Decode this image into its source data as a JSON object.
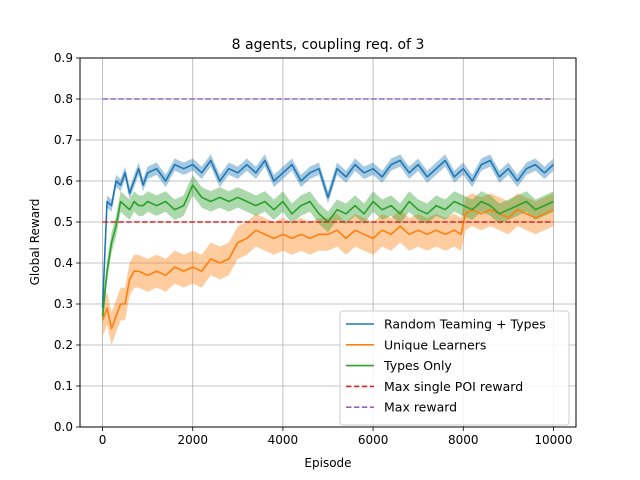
{
  "chart_data": {
    "type": "line",
    "title": "8 agents, coupling req. of 3",
    "xlabel": "Episode",
    "ylabel": "Global Reward",
    "xlim": [
      -500,
      10500
    ],
    "ylim": [
      0.0,
      0.9
    ],
    "xticks": [
      0,
      2000,
      4000,
      6000,
      8000,
      10000
    ],
    "yticks": [
      0.0,
      0.1,
      0.2,
      0.3,
      0.4,
      0.5,
      0.6,
      0.7,
      0.8,
      0.9
    ],
    "xtick_labels": [
      "0",
      "2000",
      "4000",
      "6000",
      "8000",
      "10000"
    ],
    "ytick_labels": [
      "0.0",
      "0.1",
      "0.2",
      "0.3",
      "0.4",
      "0.5",
      "0.6",
      "0.7",
      "0.8",
      "0.9"
    ],
    "grid": true,
    "legend_position": "lower-right",
    "series": [
      {
        "name": "Random Teaming + Types",
        "color": "#1f77b4",
        "style": "solid",
        "band": true,
        "x": [
          0,
          100,
          200,
          300,
          400,
          500,
          600,
          700,
          800,
          900,
          1000,
          1200,
          1400,
          1600,
          1800,
          2000,
          2200,
          2400,
          2600,
          2800,
          3000,
          3200,
          3400,
          3600,
          3800,
          4000,
          4200,
          4400,
          4600,
          4800,
          5000,
          5200,
          5400,
          5600,
          5800,
          6000,
          6200,
          6400,
          6600,
          6800,
          7000,
          7200,
          7400,
          7600,
          7800,
          8000,
          8200,
          8400,
          8600,
          8800,
          9000,
          9200,
          9400,
          9600,
          9800,
          10000
        ],
        "y": [
          0.29,
          0.55,
          0.54,
          0.6,
          0.59,
          0.62,
          0.57,
          0.6,
          0.63,
          0.59,
          0.62,
          0.63,
          0.6,
          0.64,
          0.63,
          0.64,
          0.62,
          0.65,
          0.6,
          0.63,
          0.62,
          0.64,
          0.62,
          0.65,
          0.6,
          0.62,
          0.64,
          0.6,
          0.62,
          0.63,
          0.56,
          0.63,
          0.61,
          0.64,
          0.62,
          0.63,
          0.61,
          0.64,
          0.65,
          0.62,
          0.64,
          0.61,
          0.63,
          0.65,
          0.61,
          0.63,
          0.6,
          0.64,
          0.65,
          0.61,
          0.63,
          0.6,
          0.63,
          0.64,
          0.62,
          0.64
        ],
        "spread": 0.015
      },
      {
        "name": "Unique Learners",
        "color": "#ff7f0e",
        "style": "solid",
        "band": true,
        "x": [
          0,
          100,
          200,
          300,
          400,
          500,
          600,
          700,
          800,
          1000,
          1200,
          1400,
          1600,
          1800,
          2000,
          2200,
          2400,
          2600,
          2800,
          3000,
          3200,
          3400,
          3600,
          3800,
          4000,
          4200,
          4400,
          4600,
          4800,
          5000,
          5200,
          5400,
          5600,
          5800,
          6000,
          6200,
          6400,
          6600,
          6800,
          7000,
          7200,
          7400,
          7600,
          7800,
          7950,
          8050,
          8200,
          8400,
          8600,
          8800,
          9000,
          9200,
          9400,
          9600,
          9800,
          10000
        ],
        "y": [
          0.26,
          0.29,
          0.24,
          0.27,
          0.3,
          0.3,
          0.36,
          0.38,
          0.38,
          0.37,
          0.38,
          0.37,
          0.39,
          0.38,
          0.39,
          0.38,
          0.41,
          0.4,
          0.41,
          0.45,
          0.46,
          0.48,
          0.47,
          0.46,
          0.47,
          0.46,
          0.47,
          0.46,
          0.47,
          0.47,
          0.48,
          0.46,
          0.48,
          0.47,
          0.46,
          0.48,
          0.47,
          0.49,
          0.47,
          0.48,
          0.47,
          0.48,
          0.47,
          0.48,
          0.47,
          0.52,
          0.53,
          0.52,
          0.53,
          0.52,
          0.51,
          0.53,
          0.52,
          0.51,
          0.52,
          0.53
        ],
        "spread": 0.04
      },
      {
        "name": "Types Only",
        "color": "#2ca02c",
        "style": "solid",
        "band": true,
        "x": [
          0,
          100,
          200,
          300,
          400,
          500,
          600,
          700,
          800,
          900,
          1000,
          1200,
          1400,
          1600,
          1800,
          2000,
          2200,
          2400,
          2600,
          2800,
          3000,
          3200,
          3400,
          3600,
          3800,
          4000,
          4200,
          4400,
          4600,
          4800,
          5000,
          5200,
          5400,
          5600,
          5800,
          6000,
          6200,
          6400,
          6600,
          6800,
          7000,
          7200,
          7400,
          7600,
          7800,
          8000,
          8200,
          8400,
          8600,
          8800,
          9000,
          9200,
          9400,
          9600,
          9800,
          10000
        ],
        "y": [
          0.27,
          0.38,
          0.45,
          0.49,
          0.55,
          0.54,
          0.53,
          0.55,
          0.54,
          0.54,
          0.55,
          0.54,
          0.55,
          0.53,
          0.54,
          0.59,
          0.56,
          0.55,
          0.56,
          0.55,
          0.56,
          0.55,
          0.54,
          0.55,
          0.53,
          0.55,
          0.52,
          0.54,
          0.55,
          0.52,
          0.5,
          0.53,
          0.52,
          0.54,
          0.52,
          0.55,
          0.53,
          0.54,
          0.52,
          0.55,
          0.53,
          0.52,
          0.54,
          0.53,
          0.55,
          0.54,
          0.53,
          0.55,
          0.54,
          0.52,
          0.53,
          0.54,
          0.55,
          0.53,
          0.54,
          0.55
        ],
        "spread": 0.025
      },
      {
        "name": "Max single POI reward",
        "color": "#d62728",
        "style": "dashed",
        "band": false,
        "x": [
          0,
          10000
        ],
        "y": [
          0.5,
          0.5
        ]
      },
      {
        "name": "Max reward",
        "color": "#9467bd",
        "style": "dashed",
        "band": false,
        "x": [
          0,
          10000
        ],
        "y": [
          0.8,
          0.8
        ]
      }
    ]
  }
}
